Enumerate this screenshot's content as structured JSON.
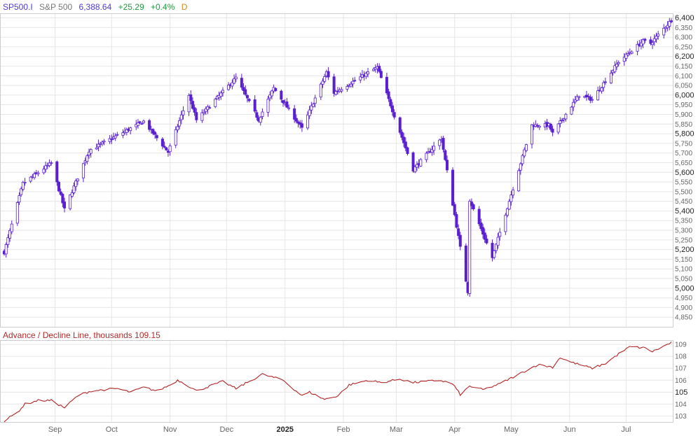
{
  "header": {
    "symbol": "SP500.I",
    "name": "S&P 500",
    "last": "6,388.64",
    "change": "+25.29",
    "change_pct": "+0.4%",
    "period": "D"
  },
  "indicator": {
    "title": "Advance / Decline Line, thousands",
    "last": "109.15"
  },
  "colors": {
    "candle": "#5a1fd1",
    "ad_line": "#b22222",
    "grid": "#e6e6e6",
    "border": "#cccccc",
    "change_up": "#1e9a3a",
    "accent": "#4d3bd6"
  },
  "chart_data": [
    {
      "type": "candlestick",
      "ylim": [
        4800,
        6420
      ],
      "y_ticks": [
        4850,
        4900,
        4950,
        5000,
        5050,
        5100,
        5150,
        5200,
        5250,
        5300,
        5350,
        5400,
        5450,
        5500,
        5550,
        5600,
        5650,
        5700,
        5750,
        5800,
        5850,
        5900,
        5950,
        6000,
        6050,
        6100,
        6150,
        6200,
        6250,
        6300,
        6350,
        6400
      ],
      "y_tick_labels": [
        "4,850",
        "4,900",
        "4,950",
        "5,000",
        "5,050",
        "5,100",
        "5,150",
        "5,200",
        "5,250",
        "5,300",
        "5,350",
        "5,400",
        "5,450",
        "5,500",
        "5,550",
        "5,600",
        "5,650",
        "5,700",
        "5,750",
        "5,800",
        "5,850",
        "5,900",
        "5,950",
        "6,000",
        "6,050",
        "6,100",
        "6,150",
        "6,200",
        "6,250",
        "6,300",
        "6,350",
        "6,400"
      ],
      "y_major_ticks": [
        5000,
        5200,
        5400,
        5600,
        5800,
        6000,
        6200,
        6400
      ],
      "grid": true,
      "anchors": [
        [
          "2024-08-05",
          5186
        ],
        [
          "2024-08-15",
          5543
        ],
        [
          "2024-08-30",
          5648
        ],
        [
          "2024-09-06",
          5408
        ],
        [
          "2024-09-19",
          5713
        ],
        [
          "2024-10-18",
          5864
        ],
        [
          "2024-10-31",
          5705
        ],
        [
          "2024-11-11",
          6001
        ],
        [
          "2024-11-15",
          5871
        ],
        [
          "2024-12-06",
          6090
        ],
        [
          "2024-12-18",
          5872
        ],
        [
          "2024-12-26",
          6037
        ],
        [
          "2025-01-10",
          5827
        ],
        [
          "2025-01-23",
          6118
        ],
        [
          "2025-01-27",
          6012
        ],
        [
          "2025-02-19",
          6144
        ],
        [
          "2025-03-10",
          5615
        ],
        [
          "2025-03-25",
          5776
        ],
        [
          "2025-04-08",
          4983
        ],
        [
          "2025-04-09",
          5457
        ],
        [
          "2025-04-21",
          5158
        ],
        [
          "2025-05-12",
          5844
        ],
        [
          "2025-05-21",
          5845
        ],
        [
          "2025-05-23",
          5802
        ],
        [
          "2025-06-06",
          6000
        ],
        [
          "2025-06-13",
          5977
        ],
        [
          "2025-06-27",
          6173
        ],
        [
          "2025-07-10",
          6280
        ],
        [
          "2025-07-14",
          6268
        ],
        [
          "2025-07-25",
          6388.64
        ]
      ]
    },
    {
      "type": "line",
      "ylim": [
        102.5,
        109.3
      ],
      "y_ticks": [
        103,
        104,
        105,
        106,
        107,
        108,
        109
      ],
      "y_major_ticks": [
        105
      ],
      "grid": true,
      "anchors": [
        [
          "2024-08-05",
          102.6
        ],
        [
          "2024-08-12",
          103.3
        ],
        [
          "2024-08-16",
          104.0
        ],
        [
          "2024-08-23",
          104.3
        ],
        [
          "2024-08-30",
          104.3
        ],
        [
          "2024-09-06",
          103.7
        ],
        [
          "2024-09-13",
          104.7
        ],
        [
          "2024-09-20",
          105.1
        ],
        [
          "2024-10-04",
          105.3
        ],
        [
          "2024-10-11",
          105.0
        ],
        [
          "2024-10-18",
          105.4
        ],
        [
          "2024-10-25",
          105.1
        ],
        [
          "2024-11-01",
          105.6
        ],
        [
          "2024-11-05",
          106.0
        ],
        [
          "2024-11-08",
          105.8
        ],
        [
          "2024-11-15",
          105.1
        ],
        [
          "2024-11-29",
          105.9
        ],
        [
          "2024-12-06",
          105.3
        ],
        [
          "2024-12-20",
          106.5
        ],
        [
          "2024-12-31",
          106.0
        ],
        [
          "2025-01-10",
          104.7
        ],
        [
          "2025-01-14",
          105.0
        ],
        [
          "2025-01-22",
          104.4
        ],
        [
          "2025-01-29",
          104.7
        ],
        [
          "2025-02-04",
          105.6
        ],
        [
          "2025-02-14",
          106.0
        ],
        [
          "2025-02-21",
          105.8
        ],
        [
          "2025-03-03",
          106.1
        ],
        [
          "2025-03-10",
          105.8
        ],
        [
          "2025-03-17",
          105.9
        ],
        [
          "2025-03-24",
          106.0
        ],
        [
          "2025-03-31",
          105.7
        ],
        [
          "2025-04-04",
          104.8
        ],
        [
          "2025-04-09",
          105.5
        ],
        [
          "2025-04-16",
          105.2
        ],
        [
          "2025-04-25",
          105.7
        ],
        [
          "2025-05-05",
          106.5
        ],
        [
          "2025-05-15",
          107.3
        ],
        [
          "2025-05-23",
          107.1
        ],
        [
          "2025-05-27",
          107.9
        ],
        [
          "2025-06-02",
          107.5
        ],
        [
          "2025-06-13",
          107.0
        ],
        [
          "2025-06-20",
          107.4
        ],
        [
          "2025-06-27",
          108.2
        ],
        [
          "2025-07-03",
          108.8
        ],
        [
          "2025-07-11",
          108.7
        ],
        [
          "2025-07-15",
          108.4
        ],
        [
          "2025-07-25",
          109.15
        ]
      ]
    }
  ],
  "x_axis": {
    "labels": [
      "Sep",
      "Oct",
      "Nov",
      "Dec",
      "2025",
      "Feb",
      "Mar",
      "Apr",
      "May",
      "Jun",
      "Jul"
    ],
    "dates": [
      "2024-09-01",
      "2024-10-01",
      "2024-11-01",
      "2024-12-01",
      "2025-01-01",
      "2025-02-01",
      "2025-03-01",
      "2025-04-01",
      "2025-05-01",
      "2025-06-01",
      "2025-07-01"
    ],
    "bold": [
      "2025"
    ],
    "start": "2024-08-05",
    "end": "2025-07-25"
  }
}
